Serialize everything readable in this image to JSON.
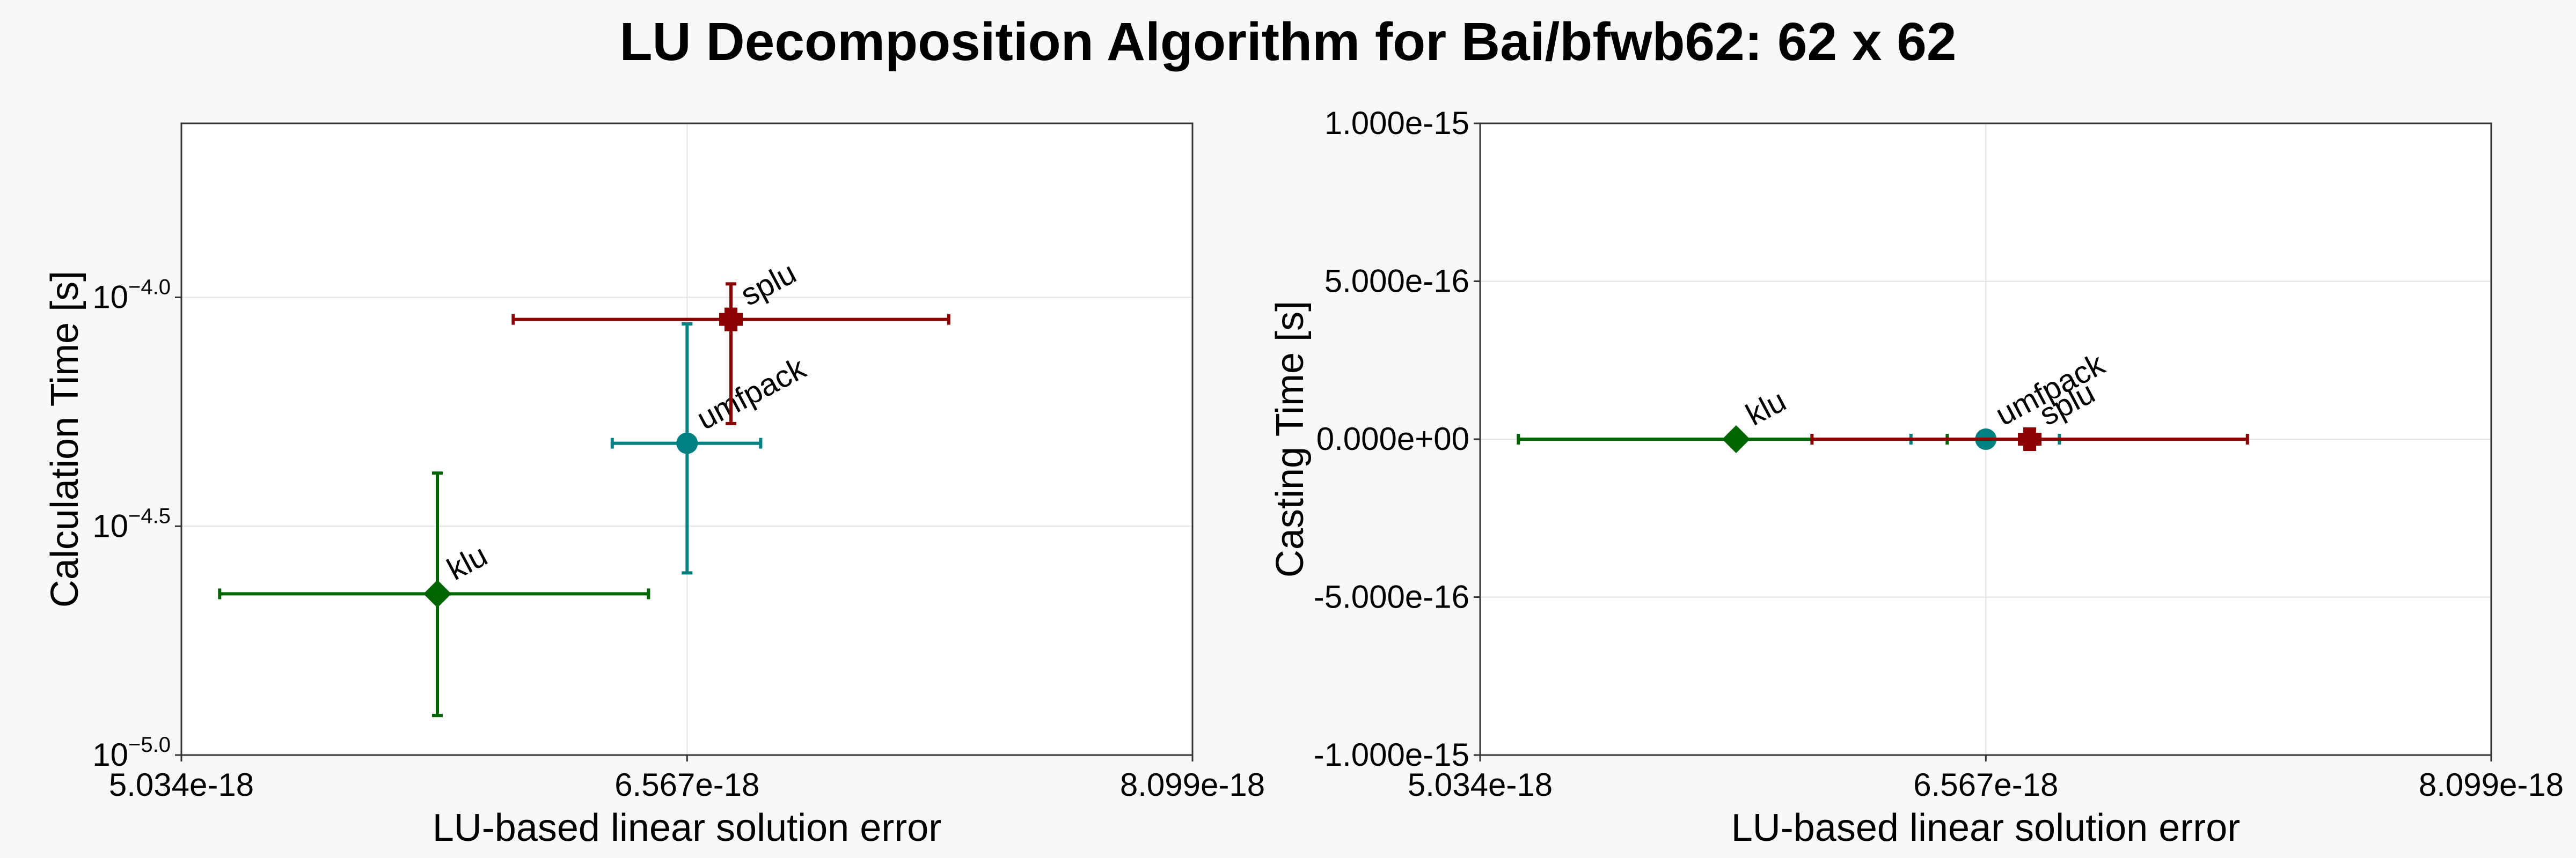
{
  "figure": {
    "title": "LU Decomposition Algorithm for Bai/bfwb62: 62 x 62"
  },
  "chart_data": [
    {
      "type": "scatter",
      "id": "calc",
      "xlabel": "LU-based linear solution error",
      "ylabel": "Calculation Time [s]",
      "xscale": "linear",
      "yscale": "log",
      "xlim": [
        5.034e-18,
        8.099e-18
      ],
      "ylim": [
        1e-05,
        0.00024
      ],
      "xticks": [
        5.034e-18,
        6.567e-18,
        8.099e-18
      ],
      "xtick_labels": [
        "5.034e-18",
        "6.567e-18",
        "8.099e-18"
      ],
      "yticks": [
        1e-05,
        3.162e-05,
        0.0001
      ],
      "ytick_labels": [
        {
          "base": "10",
          "exp": "−5.0"
        },
        {
          "base": "10",
          "exp": "−4.5"
        },
        {
          "base": "10",
          "exp": "−4.0"
        }
      ],
      "grid": true,
      "series": [
        {
          "name": "klu",
          "color": "#006400",
          "marker": "diamond",
          "x": 5.81e-18,
          "y": 2.25e-05,
          "xerr": [
            5.15e-18,
            6.45e-18
          ],
          "yerr": [
            1.22e-05,
            4.13e-05
          ]
        },
        {
          "name": "umfpack",
          "color": "#008080",
          "marker": "circle",
          "x": 6.567e-18,
          "y": 4.8e-05,
          "xerr": [
            6.34e-18,
            6.79e-18
          ],
          "yerr": [
            2.5e-05,
            8.75e-05
          ]
        },
        {
          "name": "splu",
          "color": "#8b0000",
          "marker": "plus",
          "x": 6.7e-18,
          "y": 8.95e-05,
          "xerr": [
            6.04e-18,
            7.36e-18
          ],
          "yerr": [
            5.3e-05,
            0.000107
          ]
        }
      ]
    },
    {
      "type": "scatter",
      "id": "cast",
      "xlabel": "LU-based linear solution error",
      "ylabel": "Casting Time [s]",
      "xscale": "linear",
      "yscale": "linear",
      "xlim": [
        5.034e-18,
        8.099e-18
      ],
      "ylim": [
        -1e-15,
        1e-15
      ],
      "xticks": [
        5.034e-18,
        6.567e-18,
        8.099e-18
      ],
      "xtick_labels": [
        "5.034e-18",
        "6.567e-18",
        "8.099e-18"
      ],
      "yticks": [
        -1e-15,
        -5e-16,
        0,
        5e-16,
        1e-15
      ],
      "ytick_labels": [
        "-1.000e-15",
        "-5.000e-16",
        "0.000e+00",
        "5.000e-16",
        "1.000e-15"
      ],
      "grid": true,
      "series": [
        {
          "name": "klu",
          "color": "#006400",
          "marker": "diamond",
          "x": 5.81e-18,
          "y": 0,
          "xerr": [
            5.15e-18,
            6.45e-18
          ],
          "yerr": [
            0,
            0
          ]
        },
        {
          "name": "umfpack",
          "color": "#008080",
          "marker": "circle",
          "x": 6.567e-18,
          "y": 0,
          "xerr": [
            6.34e-18,
            6.79e-18
          ],
          "yerr": [
            0,
            0
          ]
        },
        {
          "name": "splu",
          "color": "#8b0000",
          "marker": "plus",
          "x": 6.7e-18,
          "y": 0,
          "xerr": [
            6.04e-18,
            7.36e-18
          ],
          "yerr": [
            0,
            0
          ]
        }
      ]
    }
  ]
}
